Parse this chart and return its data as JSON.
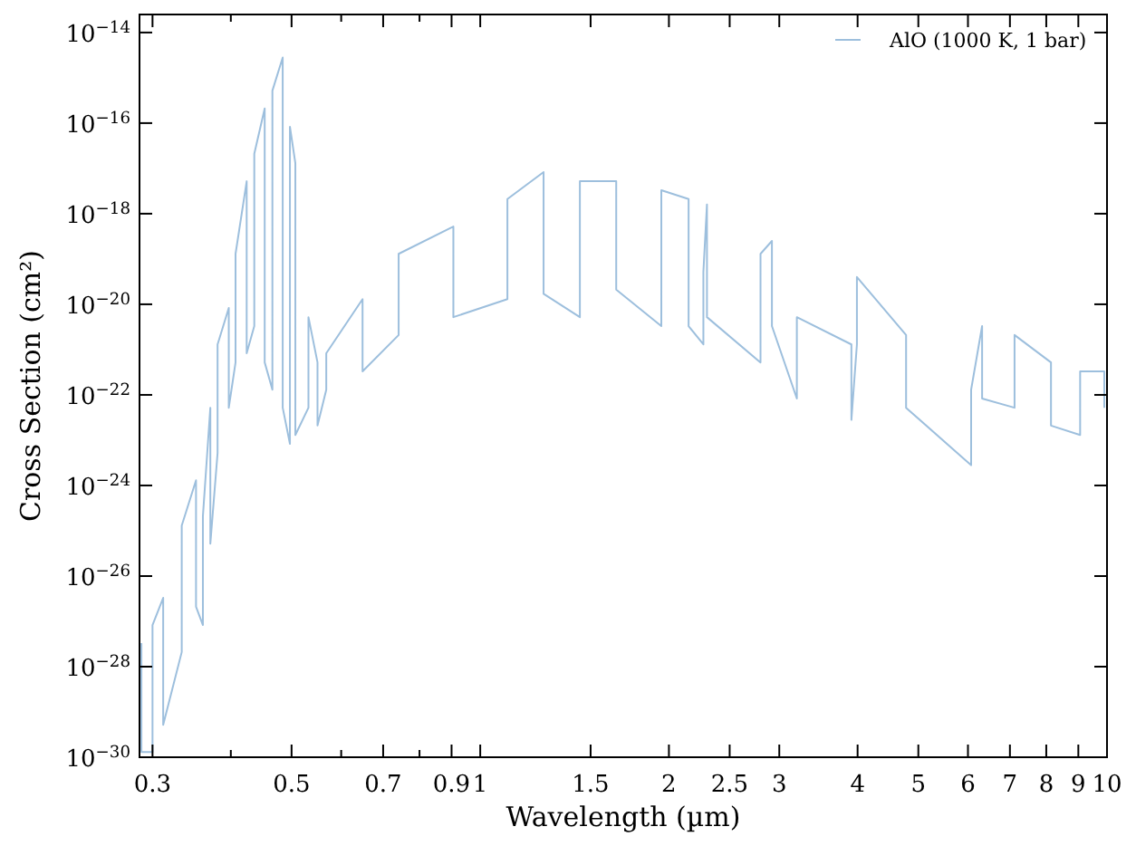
{
  "chart_data": {
    "type": "line",
    "xlabel": "Wavelength (µm)",
    "ylabel": "Cross Section (cm²)",
    "log": "xy",
    "xlim": [
      0.286,
      10
    ],
    "ylim": [
      1e-30,
      2.5e-14
    ],
    "xticks": [
      0.3,
      {
        "value": 0.4,
        "label": null
      },
      0.5,
      {
        "value": 0.6,
        "label": null
      },
      0.7,
      {
        "value": 0.8,
        "label": null
      },
      0.9,
      1,
      1.5,
      2,
      2.5,
      3,
      4,
      5,
      6,
      7,
      8,
      9,
      10
    ],
    "yticks": [
      {
        "value": 1e-30,
        "label": "10$^{−30}$"
      },
      {
        "value": 1e-28,
        "label": "10$^{−28}$"
      },
      {
        "value": 1e-26,
        "label": "10$^{−26}$"
      },
      {
        "value": 1e-24,
        "label": "10$^{−24}$"
      },
      {
        "value": 1e-22,
        "label": "10$^{−22}$"
      },
      {
        "value": 1e-20,
        "label": "10$^{−20}$"
      },
      {
        "value": 1e-18,
        "label": "10$^{−18}$"
      },
      {
        "value": 1e-16,
        "label": "10$^{−16}$"
      },
      {
        "value": 1e-14,
        "label": "10$^{−14}$"
      }
    ],
    "grid": false,
    "legend": "top right",
    "line_style": "solid",
    "series": [
      {
        "name": "AlO (1000 K, 1 bar)",
        "color": "#9dbfdd",
        "x": [
          0.288,
          0.288,
          0.3,
          0.3,
          0.312,
          0.312,
          0.334,
          0.334,
          0.352,
          0.352,
          0.361,
          0.361,
          0.371,
          0.371,
          0.381,
          0.381,
          0.397,
          0.397,
          0.407,
          0.407,
          0.424,
          0.424,
          0.436,
          0.436,
          0.453,
          0.453,
          0.466,
          0.466,
          0.484,
          0.484,
          0.497,
          0.497,
          0.507,
          0.507,
          0.532,
          0.532,
          0.55,
          0.55,
          0.568,
          0.568,
          0.649,
          0.649,
          0.741,
          0.741,
          0.906,
          0.906,
          1.105,
          1.105,
          1.262,
          1.262,
          1.442,
          1.442,
          1.648,
          1.648,
          1.945,
          1.945,
          2.15,
          2.15,
          2.27,
          2.27,
          2.3,
          2.3,
          2.8,
          2.8,
          2.92,
          2.92,
          3.2,
          3.2,
          3.91,
          3.91,
          3.99,
          3.99,
          4.78,
          4.78,
          6.07,
          6.07,
          6.32,
          6.32,
          7.12,
          7.12,
          8.14,
          8.14,
          9.06,
          9.06,
          9.9,
          9.9
        ],
        "values": [
          3.3e-28,
          1.3e-30,
          1.3e-30,
          8.3e-28,
          3.3e-27,
          5.2e-30,
          2.1e-28,
          1.3e-25,
          1.3e-24,
          2.1e-27,
          8.3e-28,
          2.1e-25,
          5.2e-23,
          5.2e-26,
          5.2e-24,
          1.3e-21,
          8.3e-21,
          5.2e-23,
          5.2e-22,
          1.3e-19,
          5.2e-18,
          8.3e-22,
          3.3e-21,
          2.1e-17,
          2.1e-16,
          5.2e-22,
          1.3e-22,
          5.2e-16,
          2.8e-15,
          5.2e-23,
          8.3e-24,
          8.3e-17,
          1.3e-17,
          1.3e-23,
          5.2e-23,
          5.2e-21,
          5.2e-22,
          2.1e-23,
          1.3e-22,
          8.3e-22,
          1.3e-20,
          3.3e-22,
          2.1e-21,
          1.3e-19,
          5.2e-19,
          5.2e-21,
          1.3e-20,
          2.1e-18,
          8.3e-18,
          1.7e-20,
          5.2e-21,
          5.2e-18,
          5.2e-18,
          2.1e-20,
          3.3e-21,
          3.3e-18,
          2.1e-18,
          3.3e-21,
          1.3e-21,
          5.2e-20,
          1.6e-18,
          5.2e-21,
          5.2e-22,
          1.3e-19,
          2.5e-19,
          3.3e-21,
          8.3e-23,
          5.2e-21,
          1.3e-21,
          2.8e-23,
          1.3e-21,
          4e-20,
          2.1e-21,
          5.2e-23,
          2.8e-24,
          1.3e-22,
          3.3e-21,
          8.3e-23,
          5.2e-23,
          2.1e-21,
          5.2e-22,
          2.1e-23,
          1.3e-23,
          3.3e-22,
          3.3e-22,
          5.2e-23
        ]
      }
    ]
  }
}
